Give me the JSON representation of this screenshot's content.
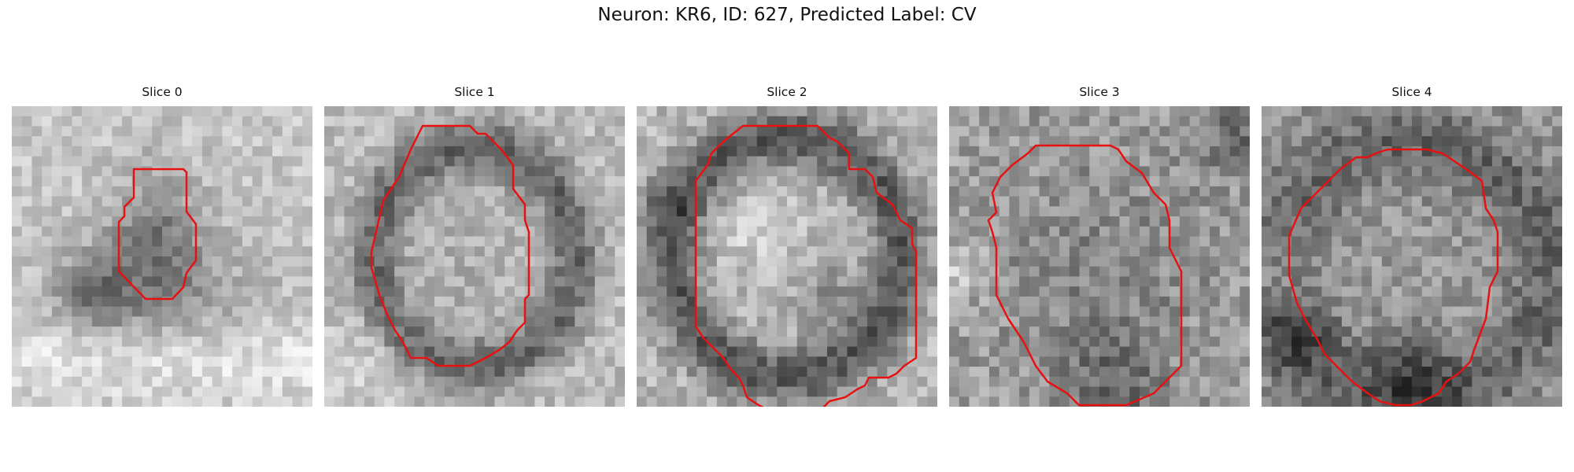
{
  "figure": {
    "title": "Neuron: KR6, ID: 627, Predicted Label: CV",
    "contour_color": "#e81010"
  },
  "slices": [
    {
      "label": "Slice 0"
    },
    {
      "label": "Slice 1"
    },
    {
      "label": "Slice 2"
    },
    {
      "label": "Slice 3"
    },
    {
      "label": "Slice 4"
    }
  ]
}
